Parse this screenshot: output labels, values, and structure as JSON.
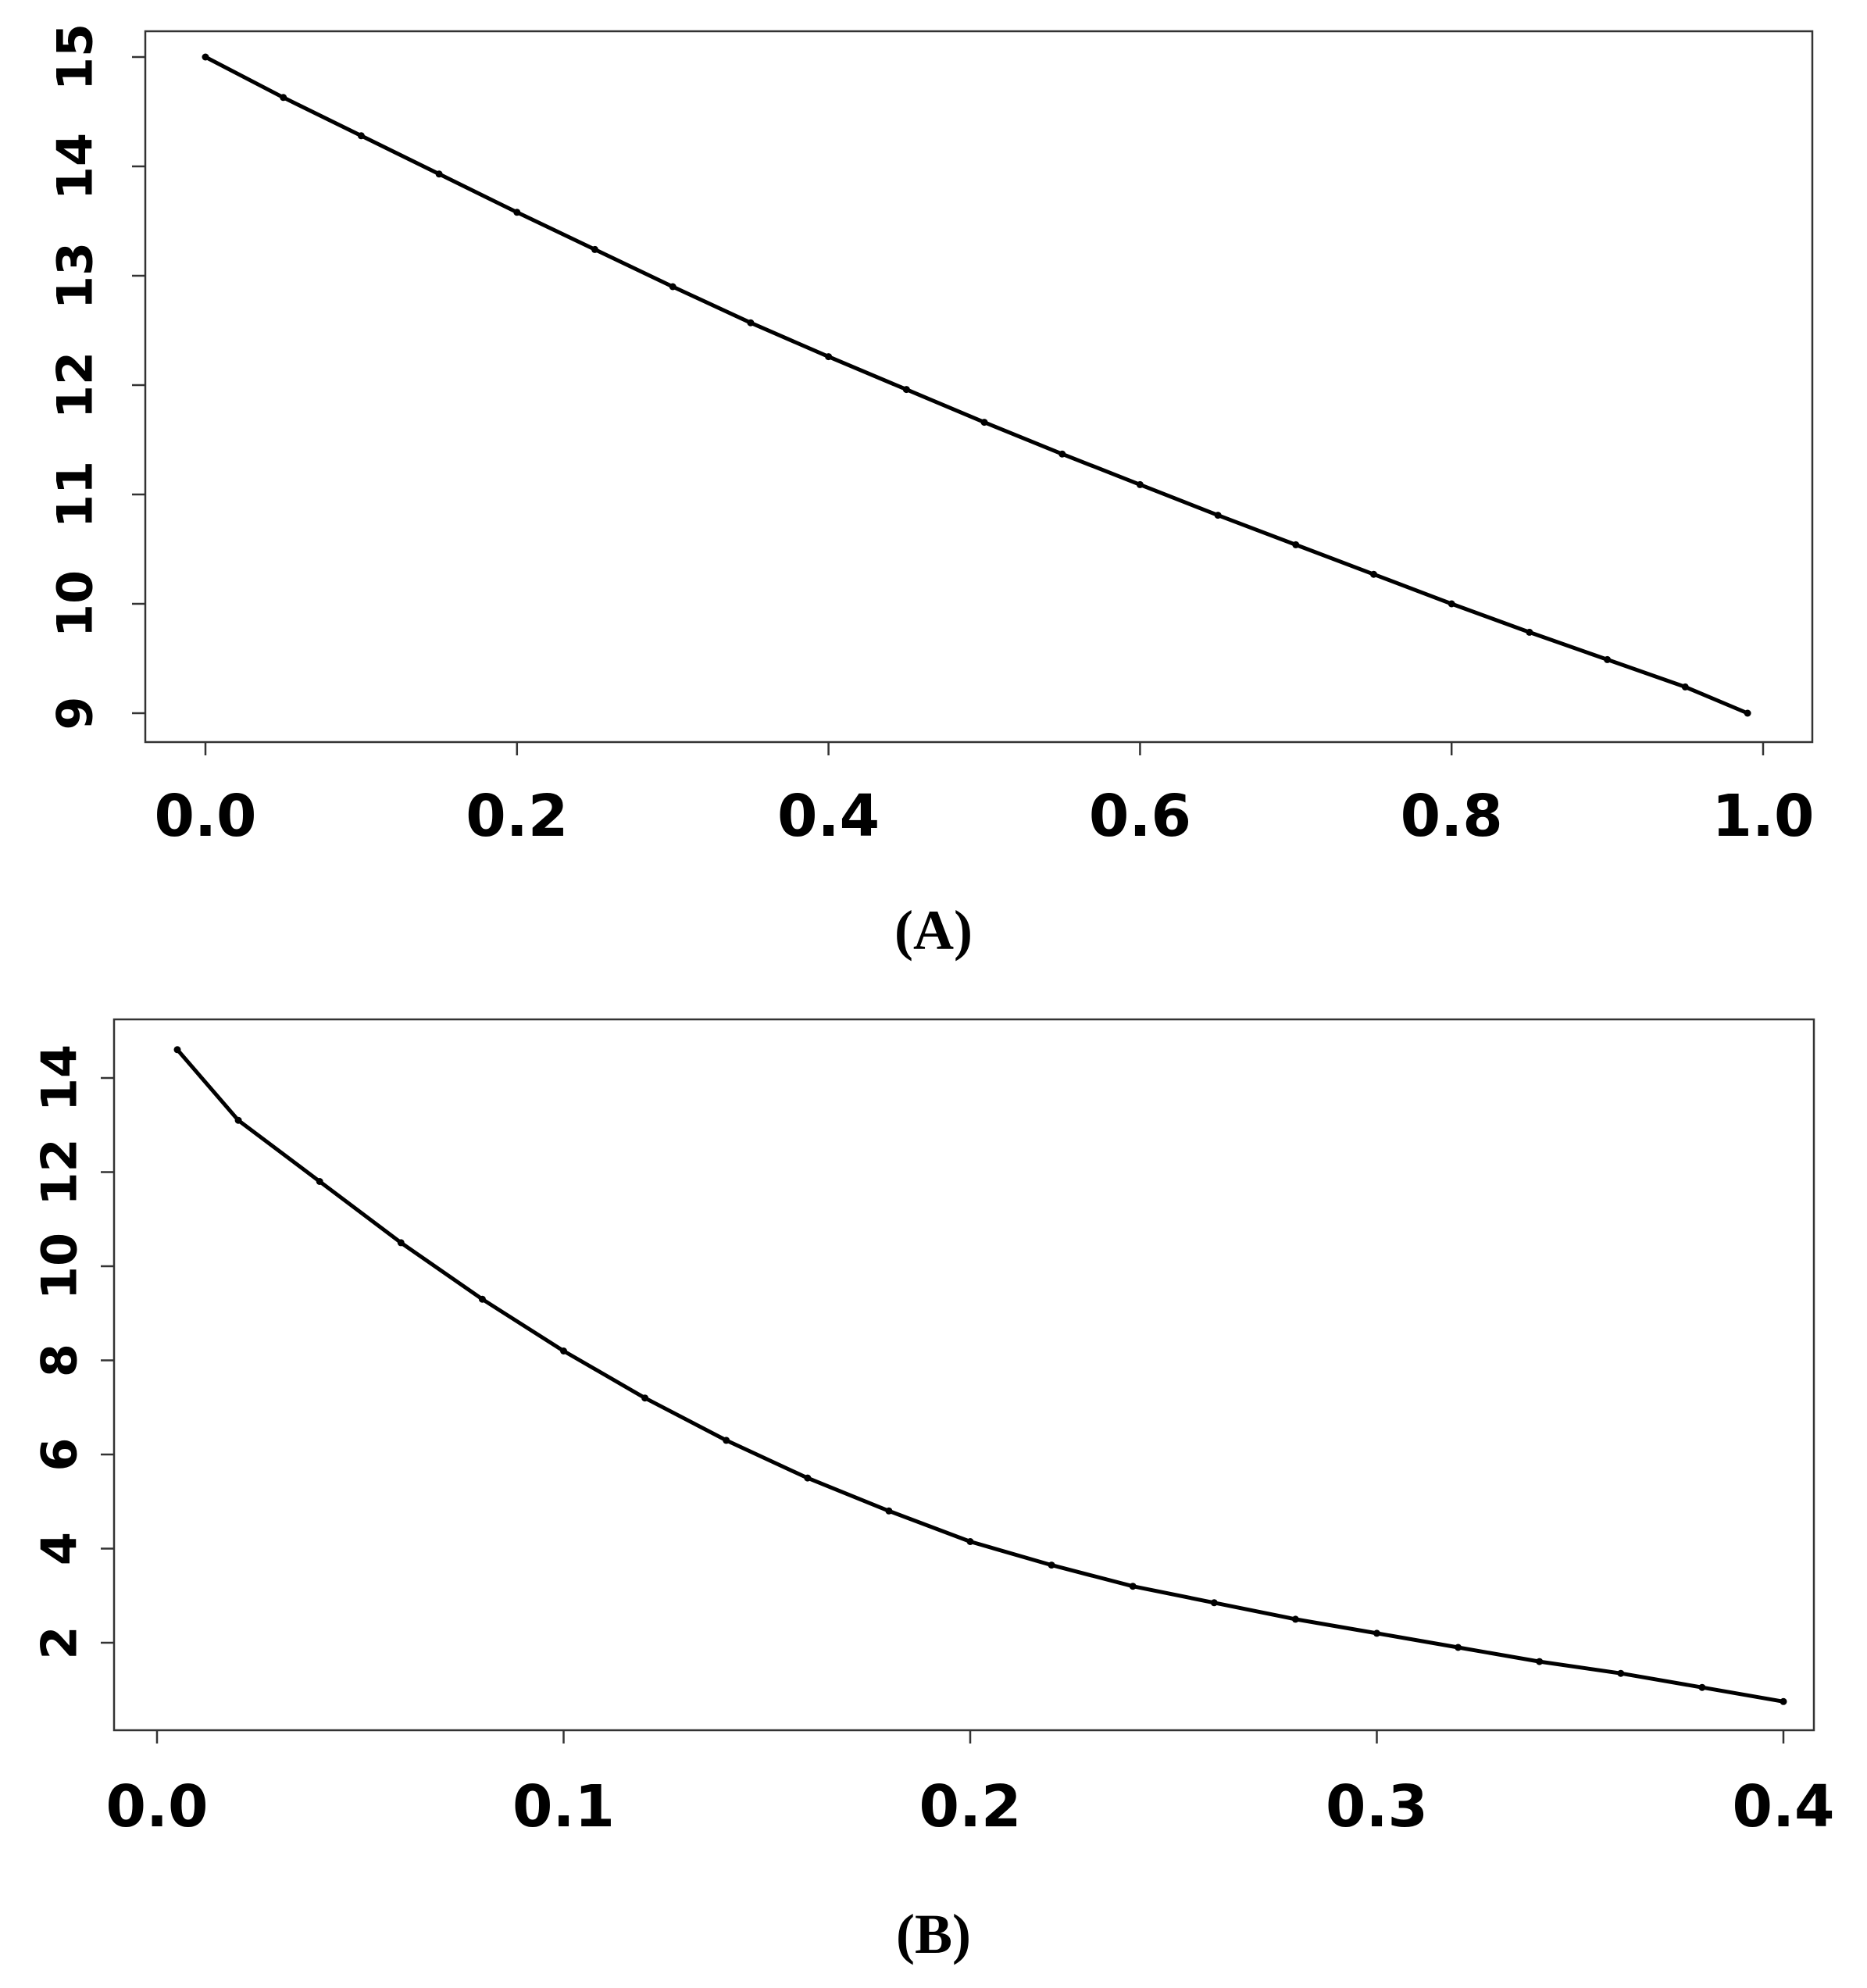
{
  "chart_data": [
    {
      "type": "line",
      "panel_label": "(A)",
      "xlim": [
        0.0,
        1.0
      ],
      "ylim": [
        9,
        15
      ],
      "x_ticks": [
        "0.0",
        "0.2",
        "0.4",
        "0.6",
        "0.8",
        "1.0"
      ],
      "y_ticks": [
        "9",
        "10",
        "11",
        "12",
        "13",
        "14",
        "15"
      ],
      "grid": false,
      "legend": "none",
      "line_color": "#000000",
      "x": [
        0.0,
        0.05,
        0.1,
        0.15,
        0.2,
        0.25,
        0.3,
        0.35,
        0.4,
        0.45,
        0.5,
        0.55,
        0.6,
        0.65,
        0.7,
        0.75,
        0.8,
        0.85,
        0.9,
        0.95,
        0.99
      ],
      "y": [
        15.0,
        14.63,
        14.28,
        13.93,
        13.58,
        13.24,
        12.9,
        12.57,
        12.26,
        11.96,
        11.66,
        11.37,
        11.09,
        10.81,
        10.54,
        10.27,
        10.0,
        9.74,
        9.49,
        9.24,
        9.0
      ]
    },
    {
      "type": "line",
      "panel_label": "(B)",
      "xlim": [
        0.0,
        0.4
      ],
      "ylim": [
        1,
        15
      ],
      "x_ticks": [
        "0.0",
        "0.1",
        "0.2",
        "0.3",
        "0.4"
      ],
      "y_ticks": [
        "2",
        "4",
        "6",
        "8",
        "10",
        "12",
        "14"
      ],
      "grid": false,
      "legend": "none",
      "line_color": "#000000",
      "x": [
        0.005,
        0.02,
        0.04,
        0.06,
        0.08,
        0.1,
        0.12,
        0.14,
        0.16,
        0.18,
        0.2,
        0.22,
        0.24,
        0.26,
        0.28,
        0.3,
        0.32,
        0.34,
        0.36,
        0.38,
        0.4
      ],
      "y": [
        14.6,
        13.1,
        11.8,
        10.5,
        9.3,
        8.2,
        7.2,
        6.3,
        5.5,
        4.8,
        4.15,
        3.65,
        3.2,
        2.85,
        2.5,
        2.2,
        1.9,
        1.6,
        1.35,
        1.05,
        0.75
      ]
    }
  ]
}
